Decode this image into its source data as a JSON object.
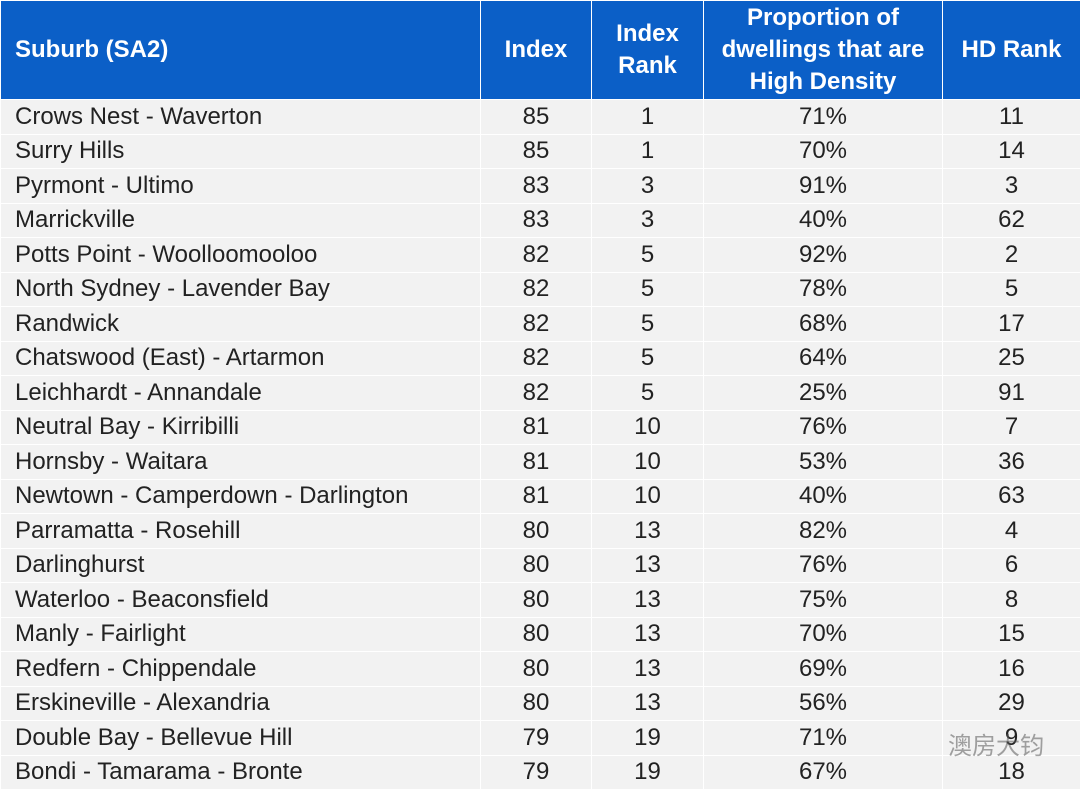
{
  "table": {
    "header": [
      "Suburb (SA2)",
      "Index",
      "Index Rank",
      "Proportion of dwellings that are High Density",
      "HD Rank"
    ],
    "rows": [
      [
        "Crows Nest - Waverton",
        "85",
        "1",
        "71%",
        "11"
      ],
      [
        "Surry Hills",
        "85",
        "1",
        "70%",
        "14"
      ],
      [
        "Pyrmont - Ultimo",
        "83",
        "3",
        "91%",
        "3"
      ],
      [
        "Marrickville",
        "83",
        "3",
        "40%",
        "62"
      ],
      [
        "Potts Point - Woolloomooloo",
        "82",
        "5",
        "92%",
        "2"
      ],
      [
        "North Sydney - Lavender Bay",
        "82",
        "5",
        "78%",
        "5"
      ],
      [
        "Randwick",
        "82",
        "5",
        "68%",
        "17"
      ],
      [
        "Chatswood (East) - Artarmon",
        "82",
        "5",
        "64%",
        "25"
      ],
      [
        "Leichhardt - Annandale",
        "82",
        "5",
        "25%",
        "91"
      ],
      [
        "Neutral Bay - Kirribilli",
        "81",
        "10",
        "76%",
        "7"
      ],
      [
        "Hornsby - Waitara",
        "81",
        "10",
        "53%",
        "36"
      ],
      [
        "Newtown - Camperdown - Darlington",
        "81",
        "10",
        "40%",
        "63"
      ],
      [
        "Parramatta - Rosehill",
        "80",
        "13",
        "82%",
        "4"
      ],
      [
        "Darlinghurst",
        "80",
        "13",
        "76%",
        "6"
      ],
      [
        "Waterloo - Beaconsfield",
        "80",
        "13",
        "75%",
        "8"
      ],
      [
        "Manly - Fairlight",
        "80",
        "13",
        "70%",
        "15"
      ],
      [
        "Redfern - Chippendale",
        "80",
        "13",
        "69%",
        "16"
      ],
      [
        "Erskineville - Alexandria",
        "80",
        "13",
        "56%",
        "29"
      ],
      [
        "Double Bay - Bellevue Hill",
        "79",
        "19",
        "71%",
        "9"
      ],
      [
        "Bondi - Tamarama - Bronte",
        "79",
        "19",
        "67%",
        "18"
      ]
    ]
  },
  "watermark": "澳房大钧"
}
